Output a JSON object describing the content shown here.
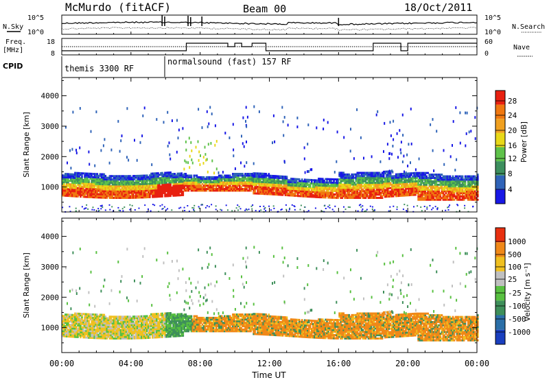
{
  "header": {
    "station": "McMurdo (fitACF)",
    "beam": "Beam 00",
    "date": "18/Oct/2011"
  },
  "status_panel": {
    "nsky_label": "N.Sky",
    "nsearch_label": "N.Search",
    "freq_label_1": "Freq.",
    "freq_label_2": "[MHz]",
    "nave_label": "Nave",
    "cpid_label": "CPID",
    "noise_ticks_left": [
      "10^5",
      "10^0"
    ],
    "noise_ticks_right": [
      "10^5",
      "10^0"
    ],
    "freq_ticks": [
      "18",
      "8"
    ],
    "nave_ticks": [
      "60",
      "0"
    ],
    "cpid_segments": [
      {
        "label": "themis 3300 RF",
        "start_hour": 0,
        "end_hour": 6
      },
      {
        "label": "normalsound (fast) 157 RF",
        "start_hour": 6,
        "end_hour": 24
      }
    ]
  },
  "chart_data": [
    {
      "type": "heatmap",
      "name": "power-panel",
      "ylabel": "Slant Range [km]",
      "ylim": [
        180,
        4600
      ],
      "y_ticks": [
        "1000",
        "2000",
        "3000",
        "4000"
      ],
      "colorbar_label": "Power [dB]",
      "colorbar_ticks": [
        "4",
        "8",
        "12",
        "16",
        "20",
        "24",
        "28"
      ],
      "colors": [
        "#1818e6",
        "#2f63b8",
        "#3d8f5e",
        "#5fc24a",
        "#e8d818",
        "#f0a020",
        "#f07810",
        "#e82010"
      ]
    },
    {
      "type": "heatmap",
      "name": "velocity-panel",
      "ylabel": "Slant Range [km]",
      "ylim": [
        180,
        4600
      ],
      "y_ticks": [
        "1000",
        "2000",
        "3000",
        "4000"
      ],
      "colorbar_label": "Velocity [m s⁻¹]",
      "colorbar_ticks": [
        "1000",
        "500",
        "100",
        "25",
        "-25",
        "-100",
        "-500",
        "-1000"
      ],
      "colors": [
        "#1a3fbf",
        "#2b6fa8",
        "#3e8f5a",
        "#58c040",
        "#c0c0c0",
        "#f0c020",
        "#f08818",
        "#e83010"
      ]
    }
  ],
  "x_axis": {
    "label": "Time UT",
    "ticks": [
      "00:00",
      "04:00",
      "08:00",
      "12:00",
      "16:00",
      "20:00",
      "00:00"
    ]
  }
}
